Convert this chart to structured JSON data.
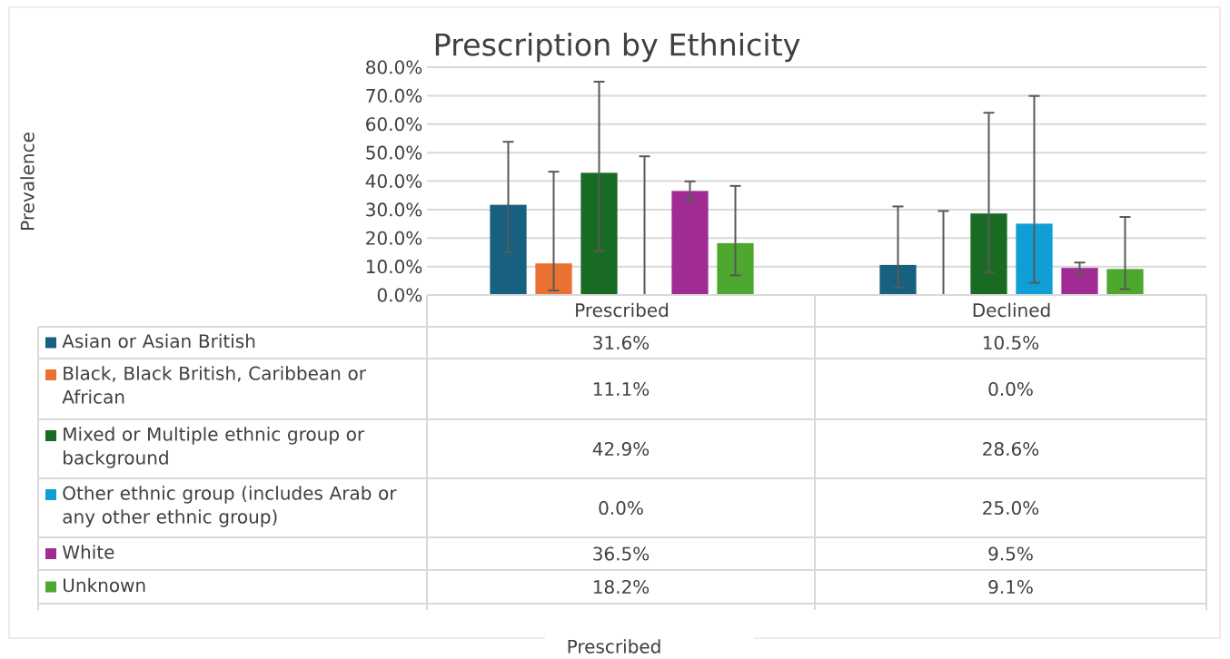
{
  "chart_data": {
    "type": "bar",
    "title": "Prescription by Ethnicity",
    "annotations": [
      "Prevalence",
      "Prescribed"
    ],
    "categories": [
      "Prescribed",
      "Declined"
    ],
    "series": [
      {
        "name": "Asian or Asian British",
        "color": "#17607f",
        "values": [
          31.6,
          10.5
        ],
        "errors": [
          [
            15.0,
            53.8
          ],
          [
            2.6,
            31.1
          ]
        ],
        "value_labels": [
          "31.6%",
          "10.5%"
        ]
      },
      {
        "name": "Black, Black British, Caribbean or African",
        "color": "#e97132",
        "values": [
          11.1,
          0.0
        ],
        "errors": [
          [
            1.6,
            43.3
          ],
          [
            0.0,
            29.5
          ]
        ],
        "value_labels": [
          "11.1%",
          "0.0%"
        ]
      },
      {
        "name": "Mixed or Multiple ethnic group or background",
        "color": "#196b24",
        "values": [
          42.9,
          28.6
        ],
        "errors": [
          [
            15.4,
            74.9
          ],
          [
            7.9,
            64.0
          ]
        ],
        "value_labels": [
          "42.9%",
          "28.6%"
        ]
      },
      {
        "name": "Other ethnic group (includes Arab or any other ethnic group)",
        "color": "#0f9ed5",
        "values": [
          0.0,
          25.0
        ],
        "errors": [
          [
            0.0,
            48.7
          ],
          [
            4.3,
            69.9
          ]
        ],
        "value_labels": [
          "0.0%",
          "25.0%"
        ]
      },
      {
        "name": "White",
        "color": "#a02b93",
        "values": [
          36.5,
          9.5
        ],
        "errors": [
          [
            33.0,
            39.9
          ],
          [
            7.4,
            11.4
          ]
        ],
        "value_labels": [
          "36.5%",
          "9.5%"
        ]
      },
      {
        "name": "Unknown",
        "color": "#4ea72e",
        "values": [
          18.2,
          9.1
        ],
        "errors": [
          [
            6.9,
            38.3
          ],
          [
            2.1,
            27.4
          ]
        ],
        "value_labels": [
          "18.2%",
          "9.1%"
        ]
      }
    ],
    "ylim": [
      0,
      80
    ],
    "yticks": [
      {
        "value": 0,
        "label": "0.0%"
      },
      {
        "value": 10,
        "label": "10.0%"
      },
      {
        "value": 20,
        "label": "20.0%"
      },
      {
        "value": 30,
        "label": "30.0%"
      },
      {
        "value": 40,
        "label": "40.0%"
      },
      {
        "value": 50,
        "label": "50.0%"
      },
      {
        "value": 60,
        "label": "60.0%"
      },
      {
        "value": 70,
        "label": "70.0%"
      },
      {
        "value": 80,
        "label": "80.0%"
      }
    ],
    "grid": "y",
    "legend": "bottom"
  }
}
